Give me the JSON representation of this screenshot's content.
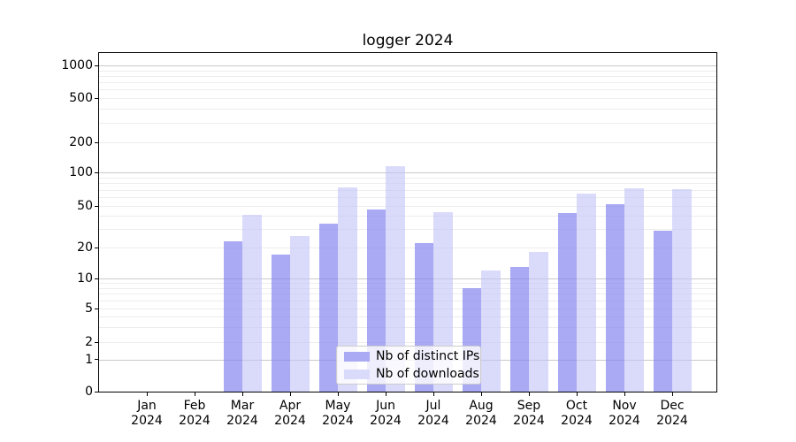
{
  "chart_data": {
    "type": "bar",
    "title": "logger 2024",
    "categories": [
      "Jan",
      "Feb",
      "Mar",
      "Apr",
      "May",
      "Jun",
      "Jul",
      "Aug",
      "Sep",
      "Oct",
      "Nov",
      "Dec"
    ],
    "year_suffix": "2024",
    "series": [
      {
        "name": "Nb of distinct IPs",
        "values": [
          0,
          0,
          23,
          17,
          34,
          46,
          22,
          8,
          13,
          43,
          52,
          29
        ],
        "bar_color": "rgba(132,132,240,0.70)",
        "legend_color": "#a9a9f4"
      },
      {
        "name": "Nb of downloads",
        "values": [
          0,
          0,
          41,
          26,
          74,
          115,
          44,
          12,
          18,
          65,
          72,
          71
        ],
        "bar_color": "rgba(196,196,247,0.62)",
        "legend_color": "#dadafa"
      }
    ],
    "yaxis": {
      "scale": "symlog",
      "tick_labels": [
        "0",
        "1",
        "2",
        "5",
        "10",
        "20",
        "50",
        "100",
        "200",
        "500",
        "1000"
      ],
      "ylim": [
        0,
        1500
      ]
    },
    "xlabel": "",
    "ylabel": "",
    "grid": true,
    "legend_position": "lower center",
    "colors": {
      "major_grid": "#c9c9c9",
      "minor_grid": "#ededed",
      "spine": "#000000",
      "background": "#ffffff"
    }
  }
}
